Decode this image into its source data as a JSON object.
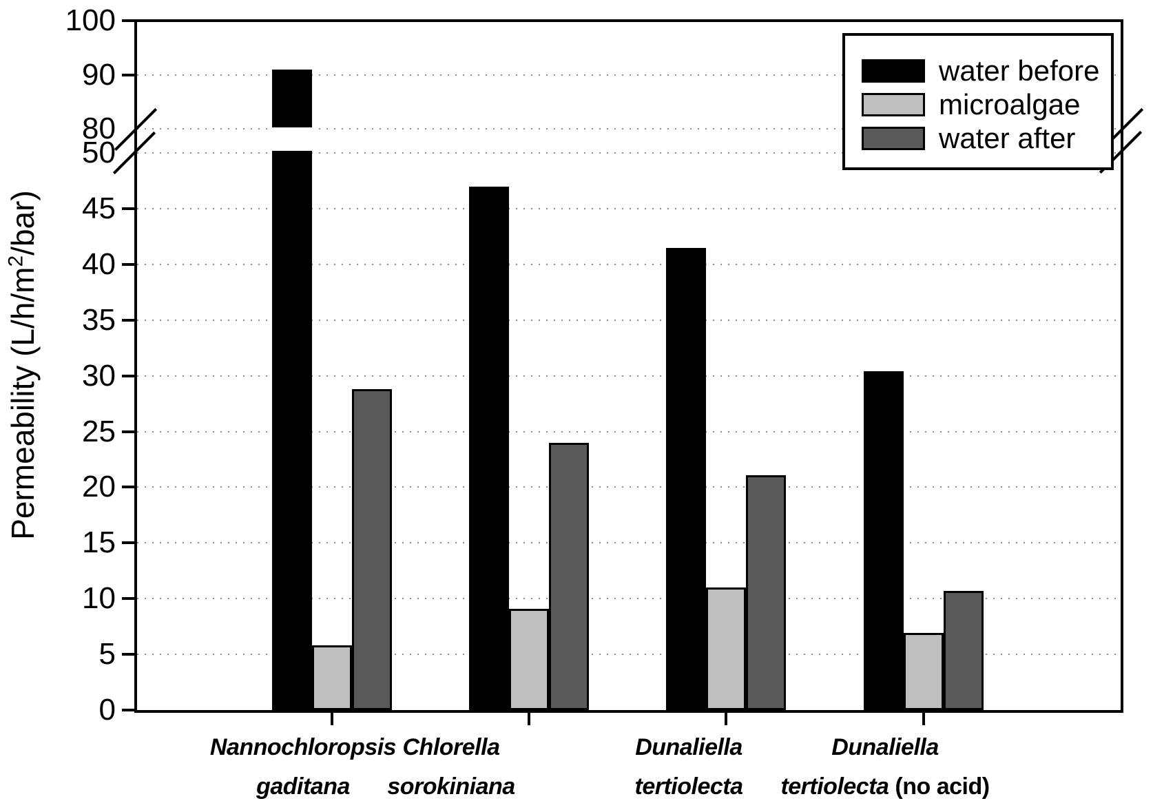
{
  "chart_data": {
    "type": "bar",
    "title": "",
    "ylabel": "Permeability (L/h/m²/bar)",
    "xlabel": "",
    "categories": [
      "Nannochloropsis gaditana",
      "Chlorella sorokiniana",
      "Dunaliella tertiolecta",
      "Dunaliella tertiolecta (no acid)"
    ],
    "series": [
      {
        "name": "water before",
        "color": "#000000",
        "values": [
          91,
          47,
          41.5,
          30.4
        ]
      },
      {
        "name": "microalgae",
        "color": "#bfbfbf",
        "values": [
          5.8,
          9.1,
          11,
          6.9
        ]
      },
      {
        "name": "water after",
        "color": "#595959",
        "values": [
          28.8,
          24,
          21.1,
          10.7
        ]
      }
    ],
    "y_axis": {
      "lower_ticks": [
        0,
        5,
        10,
        15,
        20,
        25,
        30,
        35,
        40,
        45,
        50
      ],
      "upper_ticks": [
        80,
        90,
        100
      ],
      "break_between": [
        50,
        80
      ],
      "ylim_lower": [
        0,
        50
      ],
      "ylim_upper": [
        80,
        100
      ],
      "gridlines": "dotted horizontal"
    },
    "legend_position": "top-right"
  },
  "y_axis_label": {
    "pre": "Permeability (L/h/m",
    "sup": "2",
    "post": "/bar)"
  },
  "legend": {
    "items": [
      {
        "label": "water before",
        "color": "#000000"
      },
      {
        "label": "microalgae",
        "color": "#bfbfbf"
      },
      {
        "label": "water after",
        "color": "#595959"
      }
    ]
  },
  "x_labels": [
    {
      "line1": "Nannochloropsis",
      "line2_italic": "gaditana",
      "line2_regular": ""
    },
    {
      "line1": "Chlorella",
      "line2_italic": "sorokiniana",
      "line2_regular": ""
    },
    {
      "line1": "Dunaliella",
      "line2_italic": "tertiolecta",
      "line2_regular": ""
    },
    {
      "line1": "Dunaliella",
      "line2_italic": "tertiolecta",
      "line2_regular": " (no acid)"
    }
  ]
}
